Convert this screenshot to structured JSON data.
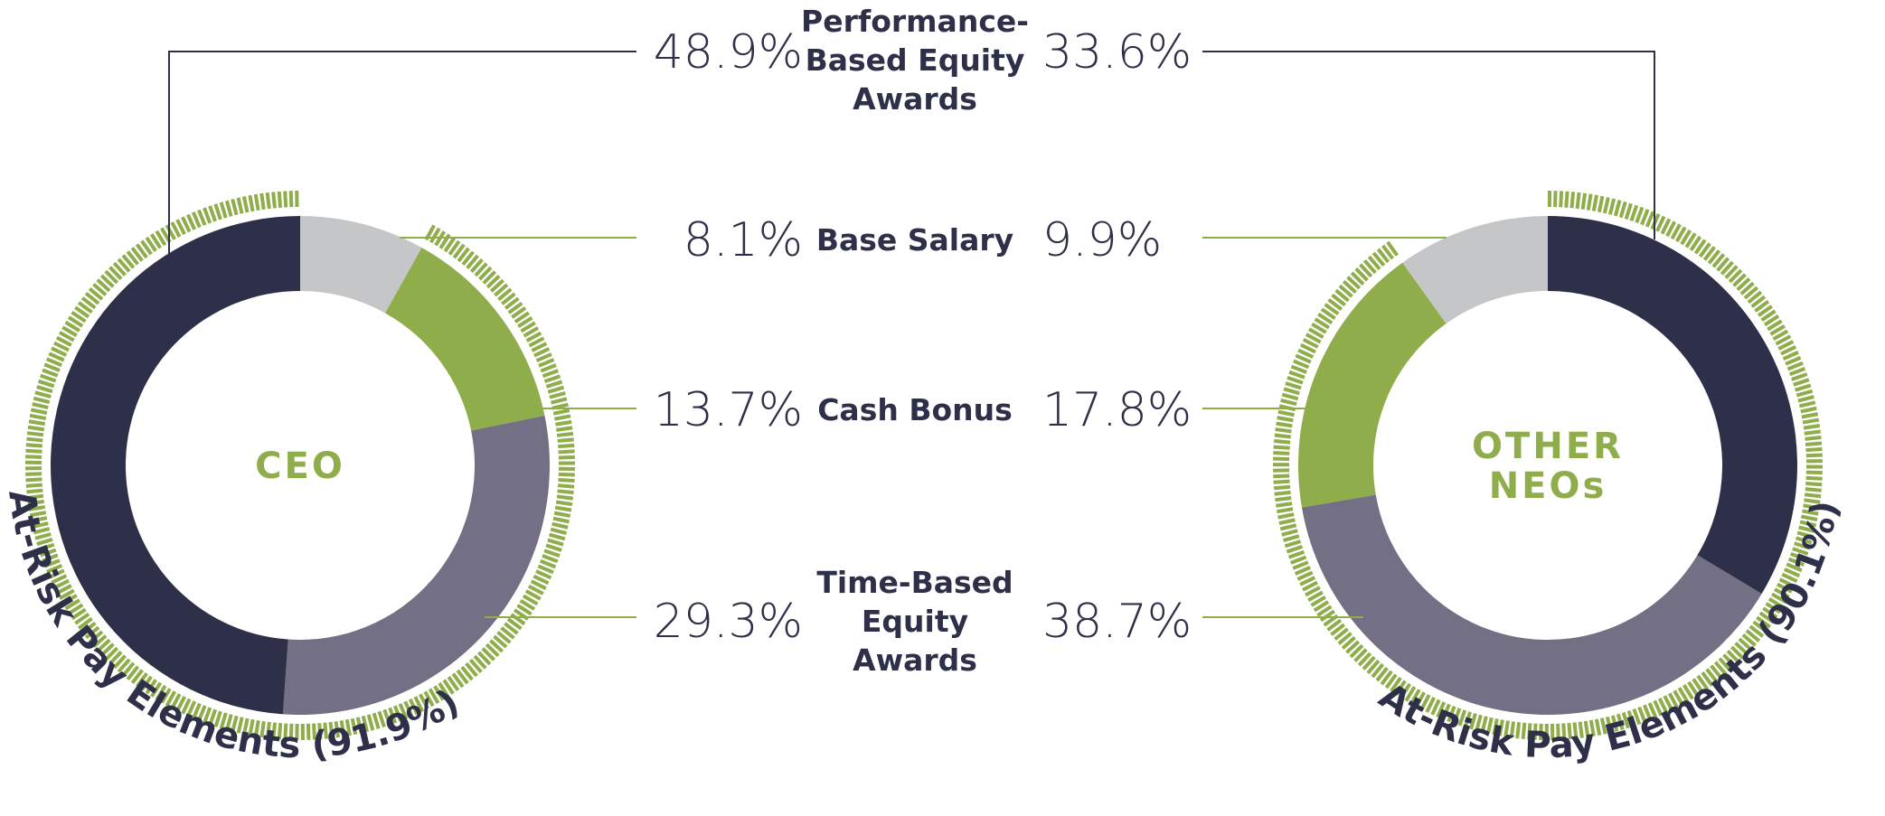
{
  "chart_data": {
    "type": "pie",
    "variant": "donut",
    "title": "",
    "categories": [
      "Base Salary",
      "Cash Bonus",
      "Time-Based Equity Awards",
      "Performance-Based Equity Awards"
    ],
    "category_lines": [
      [
        "Base Salary"
      ],
      [
        "Cash Bonus"
      ],
      [
        "Time-Based",
        "Equity",
        "Awards"
      ],
      [
        "Performance-",
        "Based Equity",
        "Awards"
      ]
    ],
    "series": [
      {
        "name": "CEO",
        "center_label": [
          "CEO"
        ],
        "values": [
          8.1,
          13.7,
          29.3,
          48.9
        ],
        "labels": [
          "8.1%",
          "13.7%",
          "29.3%",
          "48.9%"
        ],
        "at_risk_label": "At-Risk Pay Elements (91.9%)",
        "at_risk_value": 91.9
      },
      {
        "name": "OTHER NEOs",
        "center_label": [
          "OTHER",
          "NEOs"
        ],
        "values": [
          9.9,
          17.8,
          38.7,
          33.6
        ],
        "labels": [
          "9.9%",
          "17.8%",
          "38.7%",
          "33.6%"
        ],
        "at_risk_label": "At-Risk Pay Elements (90.1%)",
        "at_risk_value": 90.1
      }
    ],
    "colors": {
      "Base Salary": "#c5c6c8",
      "Cash Bonus": "#8fad4a",
      "Time-Based Equity Awards": "#737086",
      "Performance-Based Equity Awards": "#2e3049",
      "at_risk_ticks": "#8fad4a",
      "text_dark": "#2e3049",
      "center_text": "#8fad4a",
      "leader_green": "#8fad4a",
      "leader_dark": "#2e3049"
    }
  }
}
